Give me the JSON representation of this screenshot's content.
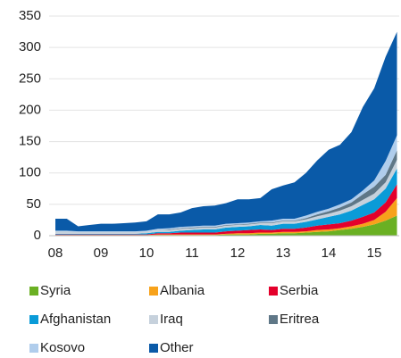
{
  "chart_data": {
    "type": "stacked_area",
    "categories": [
      "08",
      null,
      null,
      null,
      "09",
      null,
      null,
      null,
      "10",
      null,
      null,
      null,
      "11",
      null,
      null,
      null,
      "12",
      null,
      null,
      null,
      "13",
      null,
      null,
      null,
      "14",
      null,
      null,
      null,
      "15",
      null,
      null
    ],
    "series": [
      {
        "name": "Syria",
        "color": "#6ab023",
        "values": [
          1,
          1,
          1,
          1,
          1,
          1,
          1,
          1,
          1,
          1,
          1,
          1,
          1,
          1,
          1,
          2,
          2,
          2,
          3,
          3,
          4,
          4,
          5,
          6,
          7,
          9,
          11,
          14,
          18,
          24,
          32
        ]
      },
      {
        "name": "Albania",
        "color": "#f7a21b",
        "values": [
          0,
          0,
          0,
          0,
          0,
          0,
          0,
          0,
          0,
          1,
          1,
          1,
          1,
          1,
          1,
          1,
          2,
          2,
          2,
          2,
          2,
          2,
          2,
          3,
          3,
          3,
          4,
          5,
          7,
          14,
          28
        ]
      },
      {
        "name": "Serbia",
        "color": "#e4002b",
        "values": [
          1,
          1,
          1,
          1,
          1,
          1,
          1,
          1,
          1,
          2,
          2,
          3,
          3,
          3,
          3,
          4,
          4,
          5,
          5,
          4,
          5,
          5,
          6,
          7,
          8,
          8,
          9,
          11,
          12,
          15,
          22
        ]
      },
      {
        "name": "Afghanistan",
        "color": "#0a9bd8",
        "values": [
          1,
          1,
          1,
          1,
          1,
          1,
          1,
          1,
          2,
          2,
          2,
          3,
          4,
          5,
          5,
          6,
          6,
          6,
          7,
          7,
          8,
          8,
          9,
          10,
          12,
          14,
          16,
          19,
          21,
          22,
          25
        ]
      },
      {
        "name": "Iraq",
        "color": "#c6d1dc",
        "values": [
          4,
          4,
          3,
          3,
          3,
          3,
          3,
          3,
          3,
          3,
          3,
          3,
          3,
          3,
          3,
          3,
          3,
          3,
          3,
          4,
          4,
          4,
          4,
          5,
          5,
          6,
          7,
          8,
          9,
          10,
          14
        ]
      },
      {
        "name": "Eritrea",
        "color": "#5f7787",
        "values": [
          0,
          0,
          0,
          0,
          0,
          0,
          0,
          0,
          0,
          0,
          1,
          1,
          1,
          1,
          1,
          1,
          1,
          1,
          1,
          1,
          1,
          1,
          2,
          3,
          4,
          5,
          6,
          9,
          11,
          12,
          15
        ]
      },
      {
        "name": "Kosovo",
        "color": "#b0cdec",
        "values": [
          1,
          1,
          1,
          1,
          1,
          1,
          1,
          1,
          1,
          2,
          2,
          2,
          2,
          2,
          2,
          2,
          2,
          2,
          2,
          3,
          3,
          3,
          4,
          4,
          4,
          5,
          5,
          6,
          10,
          22,
          24
        ]
      },
      {
        "name": "Other",
        "color": "#0a5aa8",
        "values": [
          19,
          19,
          8,
          10,
          12,
          12,
          13,
          14,
          15,
          23,
          22,
          23,
          29,
          31,
          32,
          33,
          38,
          37,
          37,
          50,
          53,
          58,
          68,
          82,
          94,
          95,
          107,
          133,
          147,
          166,
          165
        ]
      }
    ],
    "ylim": [
      0,
      350
    ],
    "yticks": [
      0,
      50,
      100,
      150,
      200,
      250,
      300,
      350
    ],
    "grid": true
  }
}
